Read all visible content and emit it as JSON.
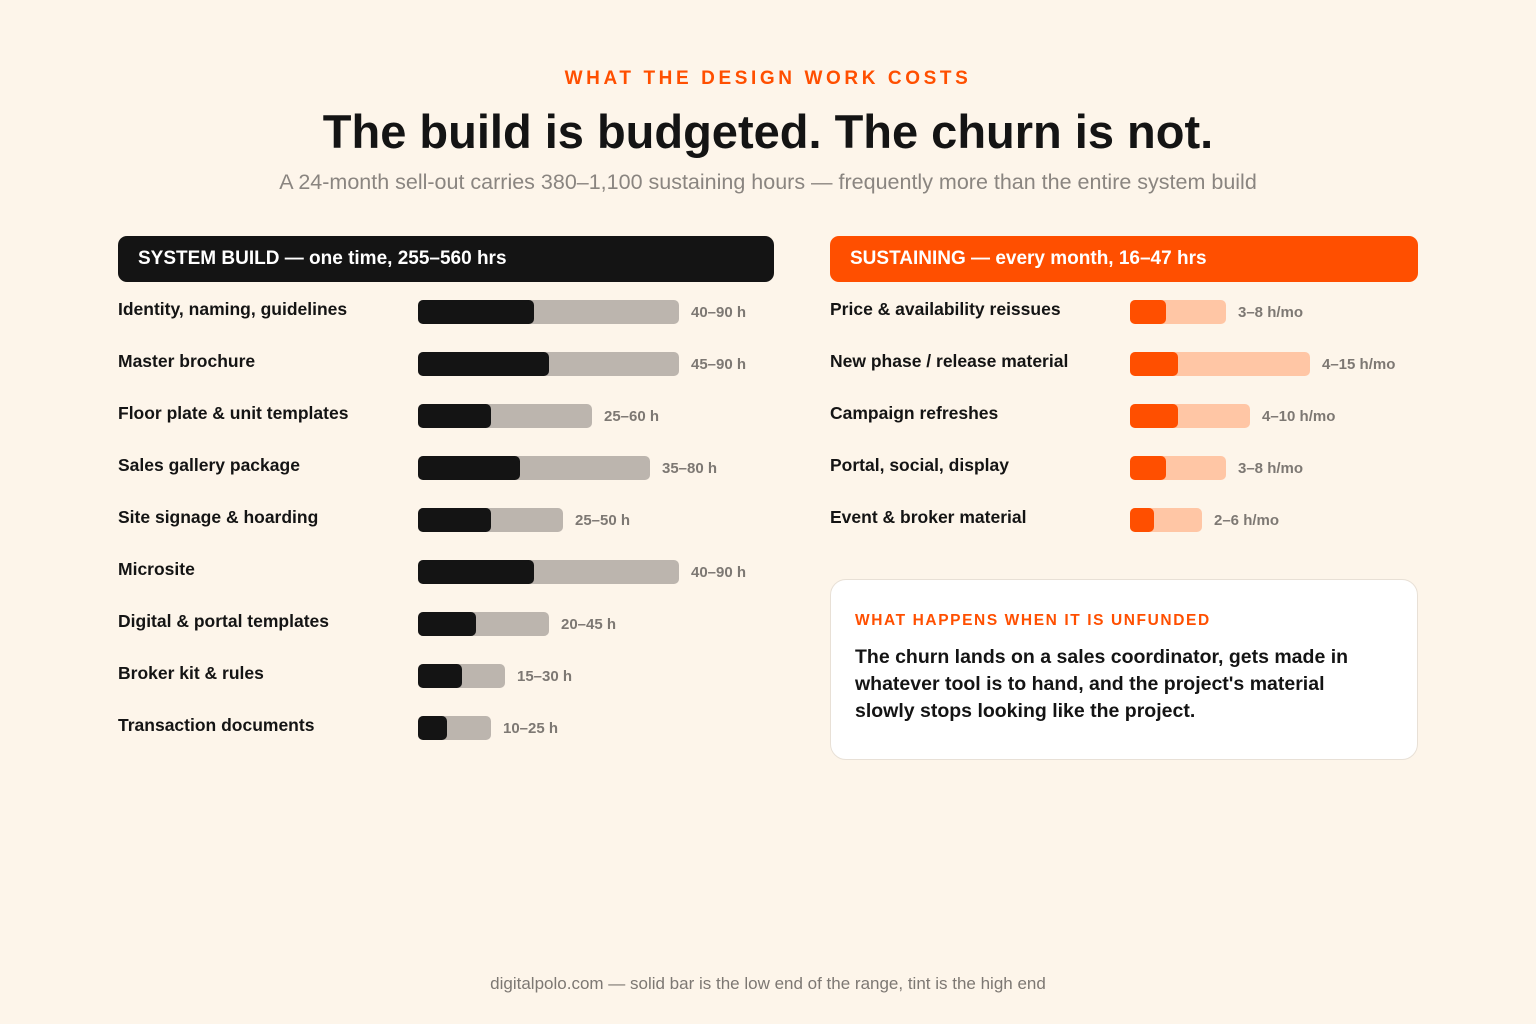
{
  "header": {
    "eyebrow": "WHAT THE DESIGN WORK COSTS",
    "title": "The build is budgeted. The churn is not.",
    "subtitle": "A 24-month sell-out carries 380–1,100 sustaining hours — frequently more than the entire system build"
  },
  "chart_data": [
    {
      "type": "bar",
      "orientation": "horizontal",
      "title": "SYSTEM BUILD — one time, 255–560 hrs",
      "unit": "h",
      "scale_max": 90,
      "colors": {
        "low": "#141414",
        "high": "#bcb5ae"
      },
      "items": [
        {
          "label": "Identity, naming, guidelines",
          "low": 40,
          "high": 90,
          "range_label": "40–90 h"
        },
        {
          "label": "Master brochure",
          "low": 45,
          "high": 90,
          "range_label": "45–90 h"
        },
        {
          "label": "Floor plate & unit templates",
          "low": 25,
          "high": 60,
          "range_label": "25–60 h"
        },
        {
          "label": "Sales gallery package",
          "low": 35,
          "high": 80,
          "range_label": "35–80 h"
        },
        {
          "label": "Site signage & hoarding",
          "low": 25,
          "high": 50,
          "range_label": "25–50 h"
        },
        {
          "label": "Microsite",
          "low": 40,
          "high": 90,
          "range_label": "40–90 h"
        },
        {
          "label": "Digital & portal templates",
          "low": 20,
          "high": 45,
          "range_label": "20–45 h"
        },
        {
          "label": "Broker kit & rules",
          "low": 15,
          "high": 30,
          "range_label": "15–30 h"
        },
        {
          "label": "Transaction documents",
          "low": 10,
          "high": 25,
          "range_label": "10–25 h"
        }
      ]
    },
    {
      "type": "bar",
      "orientation": "horizontal",
      "title": "SUSTAINING — every month, 16–47 hrs",
      "unit": "h/mo",
      "scale_max": 15,
      "colors": {
        "low": "#ff4f00",
        "high": "#ffc6a5"
      },
      "items": [
        {
          "label": "Price & availability reissues",
          "low": 3,
          "high": 8,
          "range_label": "3–8 h/mo"
        },
        {
          "label": "New phase / release material",
          "low": 4,
          "high": 15,
          "range_label": "4–15 h/mo"
        },
        {
          "label": "Campaign refreshes",
          "low": 4,
          "high": 10,
          "range_label": "4–10 h/mo"
        },
        {
          "label": "Portal, social, display",
          "low": 3,
          "high": 8,
          "range_label": "3–8 h/mo"
        },
        {
          "label": "Event & broker material",
          "low": 2,
          "high": 6,
          "range_label": "2–6 h/mo"
        }
      ]
    }
  ],
  "callout": {
    "title": "WHAT HAPPENS WHEN IT IS UNFUNDED",
    "body": "The churn lands on a sales coordinator, gets made in whatever tool is to hand, and the project's material slowly stops looking like the project."
  },
  "footer": {
    "note": "digitalpolo.com — solid bar is the low end of the range, tint is the high end"
  }
}
